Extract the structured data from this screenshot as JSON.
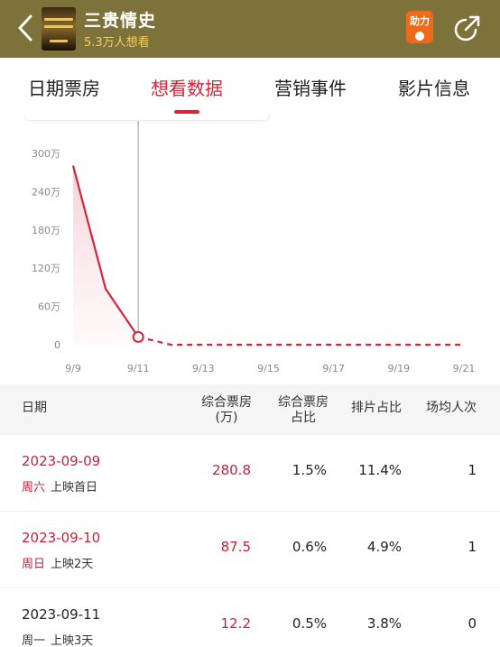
{
  "header": {
    "title": "三贵情史",
    "subtitle": "5.3万人想看",
    "boost_label": "助力"
  },
  "tabs": [
    {
      "label": "日期票房"
    },
    {
      "label": "想看数据"
    },
    {
      "label": "营销事件"
    },
    {
      "label": "影片信息"
    }
  ],
  "colors": {
    "accent": "#d4263a",
    "header_bg": "#7d7239",
    "subtitle": "#f5cf5a"
  },
  "chart_data": {
    "type": "line",
    "x": [
      "9/9",
      "9/10",
      "9/11",
      "9/12",
      "9/13",
      "9/14",
      "9/15",
      "9/16",
      "9/17",
      "9/18",
      "9/19",
      "9/20",
      "9/21"
    ],
    "x_tick_labels": [
      "9/9",
      "9/11",
      "9/13",
      "9/15",
      "9/17",
      "9/19",
      "9/21"
    ],
    "y_tick_labels": [
      "300万",
      "240万",
      "180万",
      "120万",
      "60万",
      "0"
    ],
    "series": [
      {
        "values": [
          280.8,
          87.5,
          12.2,
          0,
          0,
          0,
          0,
          0,
          0,
          0,
          0,
          0,
          0
        ]
      }
    ],
    "ylim": [
      0,
      300
    ],
    "highlight": "9/11"
  },
  "table": {
    "headers": {
      "date": "日期",
      "box": [
        "综合票房",
        "(万)"
      ],
      "share": [
        "综合票房",
        "占比"
      ],
      "screen": "排片占比",
      "avg": "场均人次"
    },
    "rows": [
      {
        "date": "2023-09-09",
        "weekday": "周六",
        "note": "上映首日",
        "box": "280.8",
        "share": "1.5%",
        "screen": "11.4%",
        "avg": "1",
        "highlight": true
      },
      {
        "date": "2023-09-10",
        "weekday": "周日",
        "note": "上映2天",
        "box": "87.5",
        "share": "0.6%",
        "screen": "4.9%",
        "avg": "1",
        "highlight": true
      },
      {
        "date": "2023-09-11",
        "weekday": "周一",
        "note": "上映3天",
        "box": "12.2",
        "share": "0.5%",
        "screen": "3.8%",
        "avg": "0",
        "highlight": false
      }
    ]
  }
}
